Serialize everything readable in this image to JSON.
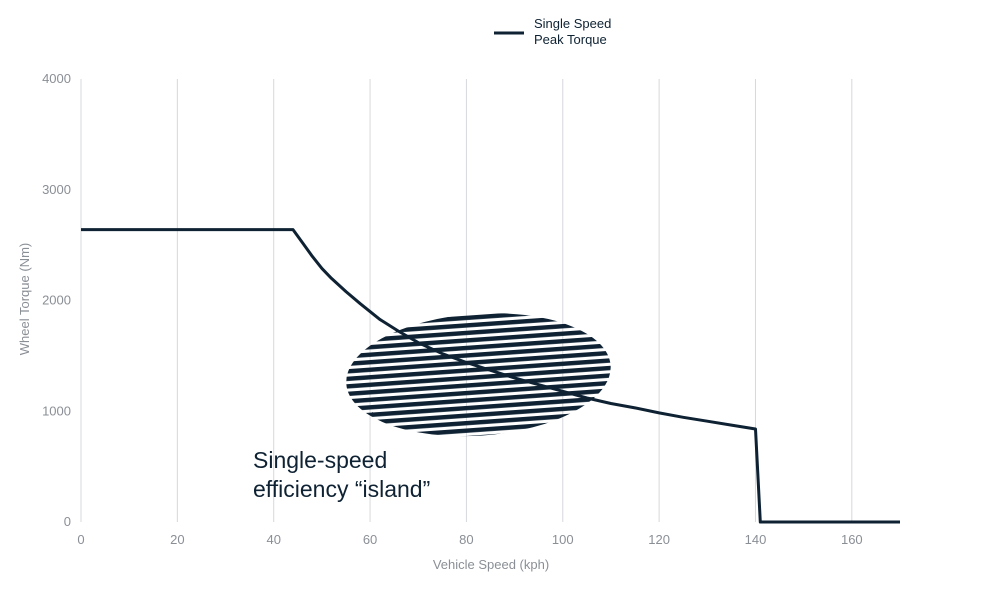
{
  "chart_data": {
    "type": "line",
    "xlabel": "Vehicle Speed (kph)",
    "ylabel": "Wheel Torque (Nm)",
    "xlim": [
      0,
      170
    ],
    "ylim": [
      0,
      4000
    ],
    "x_ticks": [
      0,
      20,
      40,
      60,
      80,
      100,
      120,
      140,
      160
    ],
    "y_ticks": [
      0,
      1000,
      2000,
      3000,
      4000
    ],
    "x_tick_labels": [
      "0",
      "20",
      "40",
      "60",
      "80",
      "100",
      "120",
      "140",
      "160"
    ],
    "y_tick_labels": [
      "0",
      "1000",
      "2000",
      "3000",
      "4000"
    ],
    "grid": {
      "vertical": true,
      "horizontal": false
    },
    "legend": {
      "position": "top-center",
      "entries": [
        "Single Speed\nPeak Torque"
      ]
    },
    "series": [
      {
        "name": "Single Speed\nPeak Torque",
        "color": "#0e2233",
        "x": [
          0,
          44,
          46,
          48,
          50,
          52,
          55,
          58,
          62,
          66,
          70,
          75,
          80,
          85,
          90,
          95,
          100,
          105,
          110,
          115,
          120,
          125,
          130,
          135,
          140,
          141,
          145,
          150,
          160,
          170
        ],
        "y": [
          2640,
          2640,
          2520,
          2400,
          2290,
          2200,
          2080,
          1970,
          1830,
          1720,
          1620,
          1520,
          1440,
          1370,
          1300,
          1240,
          1180,
          1120,
          1070,
          1030,
          985,
          945,
          910,
          875,
          840,
          0,
          0,
          0,
          0,
          0
        ]
      }
    ],
    "annotations": [
      {
        "text_lines": [
          "Single-speed",
          "efficiency “island”"
        ],
        "region": {
          "shape": "hatched-ellipse",
          "hatch": "horizontal",
          "x_range": [
            55,
            110
          ],
          "y_range": [
            780,
            1880
          ],
          "color": "#0e2233"
        }
      }
    ]
  }
}
